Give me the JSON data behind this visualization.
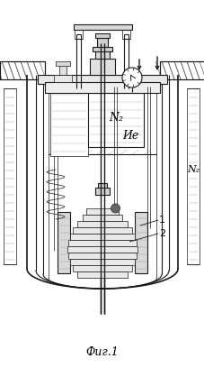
{
  "title": "Фиг.1",
  "label_N2_center": "N₂",
  "label_N2_right": "N₂",
  "label_He": "Ие",
  "label_1": "1",
  "label_2": "2",
  "bg_color": "#ffffff",
  "line_color": "#1a1a1a",
  "gray_fill": "#d8d8d8",
  "light_gray": "#eeeeee",
  "hatch_color": "#555555"
}
